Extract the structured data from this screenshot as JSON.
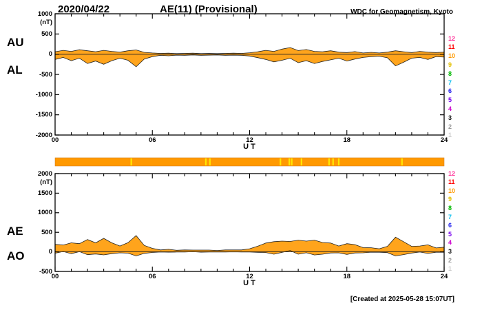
{
  "header": {
    "date": "2020/04/22",
    "title": "AE(11) (Provisional)",
    "source": "WDC for Geomagnetism, Kyoto"
  },
  "footer": {
    "created_text": "[Created at 2025-05-28 15:07UT]"
  },
  "legend_station_colors": [
    {
      "label": "12",
      "color": "#FF3399"
    },
    {
      "label": "11",
      "color": "#FF0000"
    },
    {
      "label": "10",
      "color": "#FF9900"
    },
    {
      "label": "9",
      "color": "#E3C000"
    },
    {
      "label": "8",
      "color": "#00B800"
    },
    {
      "label": "7",
      "color": "#00BBEE"
    },
    {
      "label": "6",
      "color": "#2222EE"
    },
    {
      "label": "5",
      "color": "#7700EE"
    },
    {
      "label": "4",
      "color": "#CC00CC"
    },
    {
      "label": "3",
      "color": "#111111"
    },
    {
      "label": "2",
      "color": "#999999"
    },
    {
      "label": "1",
      "color": "#CCCCCC"
    }
  ],
  "chart_data": {
    "type": "area",
    "title": "AE(11) (Provisional)",
    "date": "2020/04/22",
    "x_label": "U T",
    "x_start": 0,
    "x_end": 24,
    "x_step_hours": 0.5,
    "x_tick_hours": [
      0,
      6,
      12,
      18,
      24
    ],
    "x_tick_labels": [
      "00",
      "06",
      "12",
      "18",
      "24"
    ],
    "fill_color": "#FFA41C",
    "grid": false,
    "panels": [
      {
        "id": "AU_AL",
        "left_axis_labels": [
          "AU",
          "AL"
        ],
        "unit_label": "(nT)",
        "ylim": [
          -2000,
          1000
        ],
        "y_tick_values": [
          1000,
          500,
          0,
          -500,
          -1000,
          -1500,
          -2000
        ],
        "y_tick_labels": [
          "1000",
          "500",
          "0",
          "-500",
          "-1000",
          "-1500",
          "-2000"
        ],
        "series": [
          {
            "name": "AU",
            "values": [
              60,
              95,
              70,
              110,
              85,
              60,
              95,
              70,
              50,
              85,
              105,
              45,
              30,
              20,
              25,
              15,
              20,
              25,
              15,
              20,
              15,
              20,
              25,
              20,
              35,
              60,
              95,
              70,
              125,
              165,
              90,
              115,
              70,
              60,
              85,
              50,
              40,
              65,
              30,
              45,
              30,
              50,
              85,
              60,
              40,
              70,
              50,
              40,
              50
            ]
          },
          {
            "name": "AL",
            "values": [
              -130,
              -80,
              -160,
              -100,
              -230,
              -170,
              -250,
              -160,
              -100,
              -150,
              -310,
              -120,
              -60,
              -30,
              -40,
              -25,
              -30,
              -20,
              -30,
              -25,
              -20,
              -30,
              -25,
              -30,
              -45,
              -85,
              -130,
              -190,
              -150,
              -100,
              -210,
              -160,
              -230,
              -180,
              -140,
              -100,
              -170,
              -120,
              -80,
              -60,
              -50,
              -90,
              -290,
              -200,
              -100,
              -80,
              -130,
              -60,
              -70
            ]
          }
        ]
      },
      {
        "id": "AE_AO",
        "left_axis_labels": [
          "AE",
          "AO"
        ],
        "unit_label": "(nT)",
        "ylim": [
          -500,
          2000
        ],
        "y_tick_values": [
          2000,
          1500,
          1000,
          500,
          0,
          -500
        ],
        "y_tick_labels": [
          "2000",
          "1500",
          "1000",
          "500",
          "0",
          "-500"
        ],
        "series": [
          {
            "name": "AE",
            "values": [
              190,
              175,
              230,
              210,
              315,
              230,
              345,
              230,
              150,
              235,
              415,
              165,
              90,
              50,
              65,
              40,
              50,
              45,
              45,
              45,
              35,
              50,
              50,
              50,
              80,
              145,
              225,
              260,
              275,
              265,
              300,
              275,
              300,
              240,
              225,
              150,
              210,
              185,
              110,
              105,
              80,
              140,
              375,
              260,
              140,
              150,
              180,
              100,
              120
            ]
          },
          {
            "name": "AO",
            "values": [
              -35,
              8,
              -45,
              5,
              -73,
              -55,
              -78,
              -45,
              -25,
              -33,
              -103,
              -38,
              -15,
              -5,
              -8,
              -5,
              -5,
              3,
              -8,
              -3,
              -3,
              -5,
              0,
              -5,
              -5,
              -13,
              -18,
              -60,
              -13,
              33,
              -60,
              -23,
              -80,
              -60,
              -28,
              -25,
              -65,
              -28,
              -25,
              -8,
              -10,
              -20,
              -103,
              -70,
              -30,
              -5,
              -40,
              -10,
              -10
            ]
          }
        ]
      }
    ],
    "availability_bar": {
      "description": "station-count strip",
      "base_color": "#FF9900",
      "mark_color": "#FFE800",
      "mark_hours": [
        4.7,
        9.3,
        9.55,
        13.9,
        14.45,
        14.6,
        15.2,
        16.9,
        17.15,
        17.5,
        21.4
      ]
    }
  }
}
